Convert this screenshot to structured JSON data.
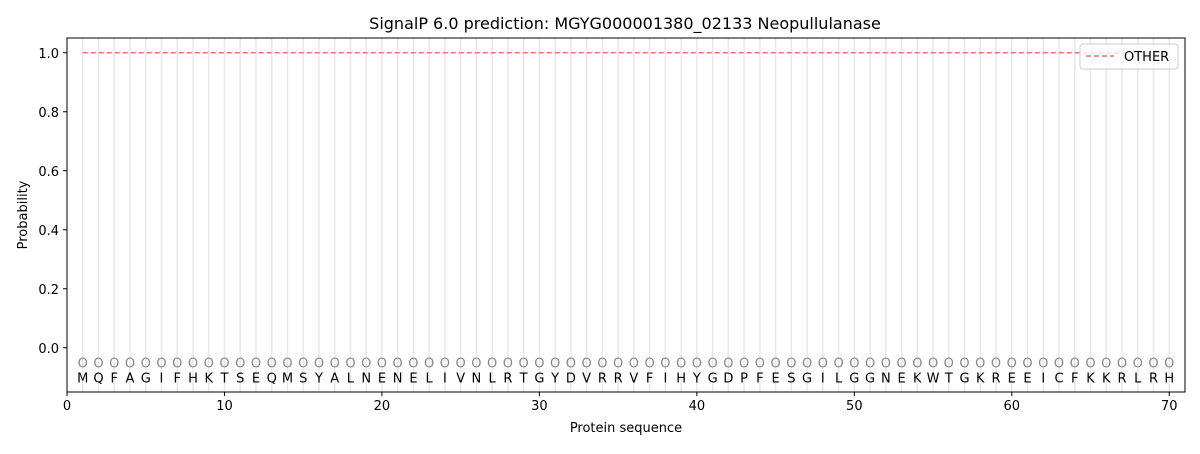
{
  "chart_data": {
    "type": "line",
    "title": "SignalP 6.0 prediction: MGYG000001380_02133 Neopullulanase",
    "xlabel": "Protein sequence",
    "ylabel": "Probability",
    "xlim": [
      0,
      71
    ],
    "ylim": [
      -0.15,
      1.05
    ],
    "xticks": [
      0,
      10,
      20,
      30,
      40,
      50,
      60,
      70
    ],
    "yticks": [
      "0.0",
      "0.2",
      "0.4",
      "0.6",
      "0.8",
      "1.0"
    ],
    "legend_position": "top-right",
    "sequence": [
      "M",
      "Q",
      "F",
      "A",
      "G",
      "I",
      "F",
      "H",
      "K",
      "T",
      "S",
      "E",
      "Q",
      "M",
      "S",
      "Y",
      "A",
      "L",
      "N",
      "E",
      "N",
      "E",
      "L",
      "I",
      "V",
      "N",
      "L",
      "R",
      "T",
      "G",
      "Y",
      "D",
      "V",
      "R",
      "R",
      "V",
      "F",
      "I",
      "H",
      "Y",
      "G",
      "D",
      "P",
      "F",
      "E",
      "S",
      "G",
      "I",
      "L",
      "G",
      "G",
      "N",
      "E",
      "K",
      "W",
      "T",
      "G",
      "K",
      "R",
      "E",
      "E",
      "I",
      "C",
      "F",
      "K",
      "K",
      "R",
      "L",
      "R",
      "H"
    ],
    "region_marker": "O",
    "series": [
      {
        "name": "OTHER",
        "color": "#f07070",
        "style": "dashed",
        "x_start": 1,
        "x_end": 70,
        "value": 1.0
      }
    ]
  }
}
